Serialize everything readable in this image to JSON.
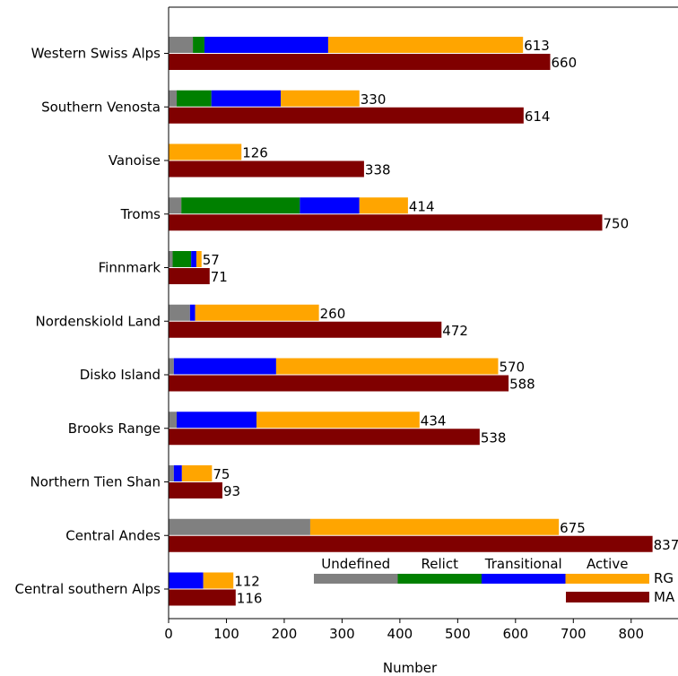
{
  "chart_data": {
    "type": "bar",
    "orientation": "horizontal",
    "stacked": true,
    "categories": [
      "Western Swiss Alps",
      "Southern Venosta",
      "Vanoise",
      "Troms",
      "Finnmark",
      "Nordenskiold Land",
      "Disko Island",
      "Brooks Range",
      "Northern Tien Shan",
      "Central Andes",
      "Central southern Alps"
    ],
    "rg_series": [
      {
        "name": "Undefined",
        "color": "#808080",
        "values": [
          42,
          14,
          0,
          22,
          7,
          37,
          9,
          14,
          9,
          245,
          0
        ]
      },
      {
        "name": "Relict",
        "color": "#008000",
        "values": [
          20,
          60,
          0,
          205,
          32,
          0,
          0,
          0,
          0,
          0,
          0
        ]
      },
      {
        "name": "Transitional",
        "color": "#0000ff",
        "values": [
          214,
          120,
          0,
          103,
          9,
          9,
          177,
          138,
          14,
          0,
          60
        ]
      },
      {
        "name": "Active",
        "color": "#ffa500",
        "values": [
          337,
          136,
          126,
          84,
          9,
          214,
          384,
          282,
          52,
          430,
          52
        ]
      }
    ],
    "rg_totals": [
      613,
      330,
      126,
      414,
      57,
      260,
      570,
      434,
      75,
      675,
      112
    ],
    "ma_series": {
      "name": "MA",
      "color": "#800000",
      "values": [
        660,
        614,
        338,
        750,
        71,
        472,
        588,
        538,
        93,
        837,
        116
      ]
    },
    "legend": {
      "rg_label": "RG",
      "ma_label": "MA",
      "labels": [
        "Undefined",
        "Relict",
        "Transitional",
        "Active"
      ],
      "placement": "bottom-right"
    },
    "xlabel": "Number",
    "xlim": [
      0,
      850
    ],
    "xticks": [
      0,
      100,
      200,
      300,
      400,
      500,
      600,
      700,
      800
    ],
    "grid": false
  }
}
